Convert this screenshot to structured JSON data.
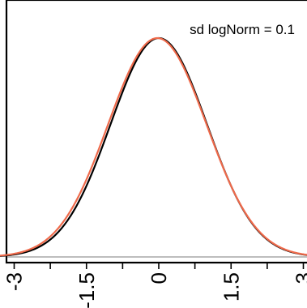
{
  "chart_data": {
    "type": "line",
    "title": "",
    "xlabel": "",
    "ylabel": "",
    "xlim": [
      -4.6,
      4.6
    ],
    "annotation": "sd logNorm = 0.1",
    "x_ticks": [
      {
        "value": -3,
        "label": "-3"
      },
      {
        "value": -2.25,
        "label": ""
      },
      {
        "value": -1.5,
        "label": "-1.5"
      },
      {
        "value": -0.75,
        "label": ""
      },
      {
        "value": 0,
        "label": "0"
      },
      {
        "value": 0.75,
        "label": ""
      },
      {
        "value": 1.5,
        "label": "1.5"
      },
      {
        "value": 2.25,
        "label": ""
      },
      {
        "value": 3,
        "label": "3"
      }
    ],
    "series": [
      {
        "color": "#000000",
        "sd": 1.0,
        "mean": 0.0,
        "peak": 1.0
      },
      {
        "color": "#ef6a4b",
        "sd": 1.02,
        "mean": -0.03,
        "peak": 1.0
      }
    ],
    "grid": false
  }
}
